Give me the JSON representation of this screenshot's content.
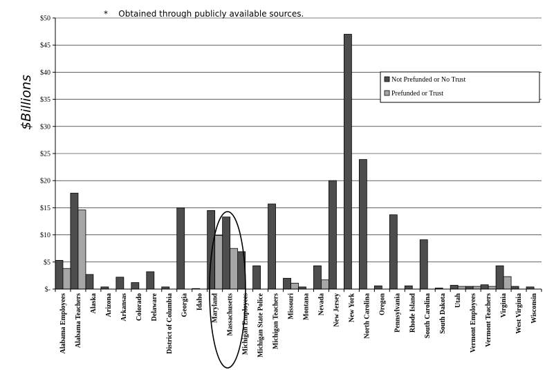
{
  "note": "*    Obtained through publicly available sources.",
  "chart_data": {
    "type": "bar",
    "ylabel": "$Billions",
    "ylim": [
      0,
      50
    ],
    "y_ticks": [
      {
        "value": 0,
        "label": "$-"
      },
      {
        "value": 5,
        "label": "$5"
      },
      {
        "value": 10,
        "label": "$10"
      },
      {
        "value": 15,
        "label": "$15"
      },
      {
        "value": 20,
        "label": "$20"
      },
      {
        "value": 25,
        "label": "$25"
      },
      {
        "value": 30,
        "label": "$30"
      },
      {
        "value": 35,
        "label": "$35"
      },
      {
        "value": 40,
        "label": "$40"
      },
      {
        "value": 45,
        "label": "$45"
      },
      {
        "value": 50,
        "label": "$50"
      }
    ],
    "categories": [
      "Alabama Employees",
      "Alabama Teachers",
      "Alaska",
      "Arizona",
      "Arkansas",
      "Colorado",
      "Delaware",
      "District of Columbia",
      "Georgia",
      "Idaho",
      "Maryland",
      "Massachusetts",
      "Michigan Employees",
      "Michigan State Police",
      "Michigan Teachers",
      "Missouri",
      "Montana",
      "Nevada",
      "New Jersey",
      "New York",
      "North Carolina",
      "Oregon",
      "Pennsylvania",
      "Rhode Island",
      "South Carolina",
      "South Dakota",
      "Utah",
      "Vermont Employees",
      "Vermont Teachers",
      "Virginia",
      "West Virginia",
      "Wisconsin"
    ],
    "series": [
      {
        "name": "Not Prefunded or No Trust",
        "color": "#4d4d4d",
        "values": [
          5.3,
          17.7,
          2.7,
          0.4,
          2.2,
          1.2,
          3.2,
          0.4,
          15.0,
          0.1,
          14.5,
          13.3,
          6.9,
          4.3,
          15.7,
          2.0,
          0.4,
          4.3,
          20.0,
          47.0,
          23.9,
          0.6,
          13.7,
          0.6,
          9.1,
          0.2,
          0.7,
          0.5,
          0.8,
          4.3,
          0.5,
          0.4
        ]
      },
      {
        "name": "Prefunded or Trust",
        "color": "#a6a6a6",
        "values": [
          3.8,
          14.6,
          0,
          0,
          0,
          0,
          0,
          0,
          0,
          0,
          9.9,
          7.5,
          0,
          0,
          0,
          1.1,
          0,
          1.7,
          0,
          0,
          0,
          0,
          0,
          0,
          0,
          0,
          0.5,
          0.5,
          0.5,
          2.3,
          0,
          0
        ]
      }
    ],
    "legend_position": "top-right",
    "grid": "horizontal",
    "highlight": "Massachusetts"
  }
}
